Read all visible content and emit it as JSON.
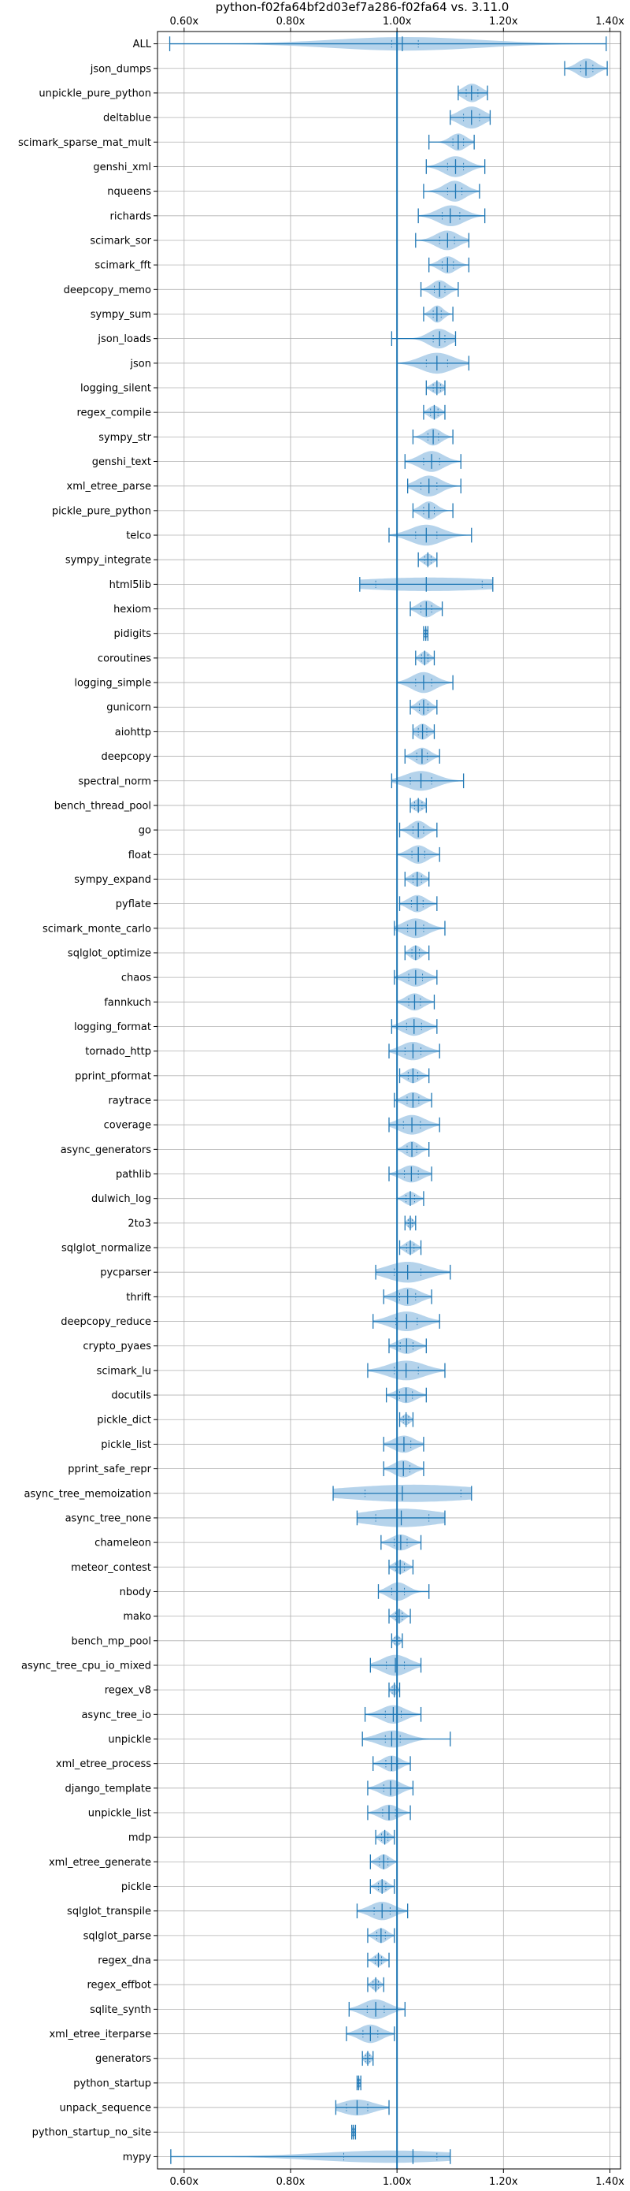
{
  "chart_data": {
    "type": "violin",
    "title": "python-f02fa64bf2d03ef7a286-f02fa64 vs. 3.11.0",
    "xlabel": "",
    "ylabel": "",
    "xlim": [
      0.55,
      1.42
    ],
    "x_ticks": [
      0.6,
      0.8,
      1.0,
      1.2,
      1.4
    ],
    "x_tick_labels": [
      "0.60x",
      "0.80x",
      "1.00x",
      "1.20x",
      "1.40x"
    ],
    "x_axis_position": "top-and-bottom",
    "reference_line": 1.0,
    "grid": true,
    "colors": {
      "violin_fill": "#a8cbe8",
      "stat_lines": "#1f77b4",
      "grid": "#b0b0b0"
    },
    "series": [
      {
        "name": "ALL",
        "min": 0.573,
        "max": 1.393,
        "median": 1.01,
        "mean": 1.02,
        "q1": 0.99,
        "q3": 1.04,
        "spread": 0.55
      },
      {
        "name": "json_dumps",
        "min": 1.315,
        "max": 1.395,
        "median": 1.355,
        "mean": 1.355,
        "q1": 1.345,
        "q3": 1.368,
        "spread": 0.8
      },
      {
        "name": "unpickle_pure_python",
        "min": 1.115,
        "max": 1.17,
        "median": 1.14,
        "mean": 1.142,
        "q1": 1.13,
        "q3": 1.152,
        "spread": 0.75
      },
      {
        "name": "deltablue",
        "min": 1.1,
        "max": 1.175,
        "median": 1.14,
        "mean": 1.138,
        "q1": 1.125,
        "q3": 1.155,
        "spread": 0.9
      },
      {
        "name": "scimark_sparse_mat_mult",
        "min": 1.06,
        "max": 1.145,
        "median": 1.115,
        "mean": 1.115,
        "q1": 1.105,
        "q3": 1.125,
        "spread": 0.7
      },
      {
        "name": "genshi_xml",
        "min": 1.055,
        "max": 1.165,
        "median": 1.11,
        "mean": 1.11,
        "q1": 1.095,
        "q3": 1.125,
        "spread": 0.85
      },
      {
        "name": "nqueens",
        "min": 1.05,
        "max": 1.155,
        "median": 1.11,
        "mean": 1.108,
        "q1": 1.095,
        "q3": 1.122,
        "spread": 0.85
      },
      {
        "name": "richards",
        "min": 1.04,
        "max": 1.165,
        "median": 1.1,
        "mean": 1.1,
        "q1": 1.085,
        "q3": 1.118,
        "spread": 0.85
      },
      {
        "name": "scimark_sor",
        "min": 1.035,
        "max": 1.135,
        "median": 1.095,
        "mean": 1.093,
        "q1": 1.08,
        "q3": 1.108,
        "spread": 0.8
      },
      {
        "name": "scimark_fft",
        "min": 1.06,
        "max": 1.135,
        "median": 1.095,
        "mean": 1.095,
        "q1": 1.085,
        "q3": 1.106,
        "spread": 0.7
      },
      {
        "name": "deepcopy_memo",
        "min": 1.045,
        "max": 1.115,
        "median": 1.08,
        "mean": 1.08,
        "q1": 1.07,
        "q3": 1.09,
        "spread": 0.75
      },
      {
        "name": "sympy_sum",
        "min": 1.05,
        "max": 1.105,
        "median": 1.075,
        "mean": 1.075,
        "q1": 1.068,
        "q3": 1.083,
        "spread": 0.7
      },
      {
        "name": "json_loads",
        "min": 0.99,
        "max": 1.11,
        "median": 1.08,
        "mean": 1.075,
        "q1": 1.068,
        "q3": 1.09,
        "spread": 0.8
      },
      {
        "name": "json",
        "min": 1.0,
        "max": 1.135,
        "median": 1.075,
        "mean": 1.075,
        "q1": 1.055,
        "q3": 1.095,
        "spread": 0.85
      },
      {
        "name": "logging_silent",
        "min": 1.055,
        "max": 1.09,
        "median": 1.075,
        "mean": 1.075,
        "q1": 1.068,
        "q3": 1.082,
        "spread": 0.5
      },
      {
        "name": "regex_compile",
        "min": 1.05,
        "max": 1.09,
        "median": 1.07,
        "mean": 1.07,
        "q1": 1.063,
        "q3": 1.077,
        "spread": 0.55
      },
      {
        "name": "sympy_str",
        "min": 1.03,
        "max": 1.105,
        "median": 1.068,
        "mean": 1.068,
        "q1": 1.058,
        "q3": 1.078,
        "spread": 0.7
      },
      {
        "name": "genshi_text",
        "min": 1.015,
        "max": 1.12,
        "median": 1.065,
        "mean": 1.065,
        "q1": 1.05,
        "q3": 1.08,
        "spread": 0.85
      },
      {
        "name": "xml_etree_parse",
        "min": 1.02,
        "max": 1.12,
        "median": 1.06,
        "mean": 1.062,
        "q1": 1.045,
        "q3": 1.075,
        "spread": 0.85
      },
      {
        "name": "pickle_pure_python",
        "min": 1.03,
        "max": 1.105,
        "median": 1.06,
        "mean": 1.06,
        "q1": 1.05,
        "q3": 1.07,
        "spread": 0.75
      },
      {
        "name": "telco",
        "min": 0.985,
        "max": 1.14,
        "median": 1.055,
        "mean": 1.055,
        "q1": 1.035,
        "q3": 1.075,
        "spread": 0.85
      },
      {
        "name": "sympy_integrate",
        "min": 1.04,
        "max": 1.075,
        "median": 1.058,
        "mean": 1.058,
        "q1": 1.052,
        "q3": 1.064,
        "spread": 0.5
      },
      {
        "name": "html5lib",
        "min": 0.93,
        "max": 1.18,
        "median": 1.055,
        "mean": 1.055,
        "q1": 0.96,
        "q3": 1.16,
        "spread": 0.55
      },
      {
        "name": "hexiom",
        "min": 1.025,
        "max": 1.085,
        "median": 1.055,
        "mean": 1.055,
        "q1": 1.045,
        "q3": 1.065,
        "spread": 0.7
      },
      {
        "name": "pidigits",
        "min": 1.05,
        "max": 1.058,
        "median": 1.054,
        "mean": 1.054,
        "q1": 1.052,
        "q3": 1.056,
        "spread": 0.45
      },
      {
        "name": "coroutines",
        "min": 1.035,
        "max": 1.07,
        "median": 1.052,
        "mean": 1.052,
        "q1": 1.046,
        "q3": 1.058,
        "spread": 0.55
      },
      {
        "name": "logging_simple",
        "min": 1.0,
        "max": 1.105,
        "median": 1.05,
        "mean": 1.05,
        "q1": 1.035,
        "q3": 1.065,
        "spread": 0.85
      },
      {
        "name": "gunicorn",
        "min": 1.025,
        "max": 1.075,
        "median": 1.05,
        "mean": 1.05,
        "q1": 1.042,
        "q3": 1.058,
        "spread": 0.7
      },
      {
        "name": "aiohttp",
        "min": 1.03,
        "max": 1.07,
        "median": 1.048,
        "mean": 1.048,
        "q1": 1.04,
        "q3": 1.056,
        "spread": 0.65
      },
      {
        "name": "deepcopy",
        "min": 1.015,
        "max": 1.08,
        "median": 1.047,
        "mean": 1.047,
        "q1": 1.037,
        "q3": 1.057,
        "spread": 0.7
      },
      {
        "name": "spectral_norm",
        "min": 0.99,
        "max": 1.125,
        "median": 1.045,
        "mean": 1.045,
        "q1": 1.025,
        "q3": 1.065,
        "spread": 0.8
      },
      {
        "name": "bench_thread_pool",
        "min": 1.025,
        "max": 1.055,
        "median": 1.04,
        "mean": 1.04,
        "q1": 1.033,
        "q3": 1.047,
        "spread": 0.5
      },
      {
        "name": "go",
        "min": 1.005,
        "max": 1.075,
        "median": 1.04,
        "mean": 1.04,
        "q1": 1.03,
        "q3": 1.05,
        "spread": 0.75
      },
      {
        "name": "float",
        "min": 1.0,
        "max": 1.08,
        "median": 1.04,
        "mean": 1.04,
        "q1": 1.028,
        "q3": 1.052,
        "spread": 0.75
      },
      {
        "name": "sympy_expand",
        "min": 1.015,
        "max": 1.06,
        "median": 1.038,
        "mean": 1.038,
        "q1": 1.03,
        "q3": 1.046,
        "spread": 0.6
      },
      {
        "name": "pyflate",
        "min": 1.005,
        "max": 1.075,
        "median": 1.038,
        "mean": 1.038,
        "q1": 1.027,
        "q3": 1.049,
        "spread": 0.7
      },
      {
        "name": "scimark_monte_carlo",
        "min": 0.995,
        "max": 1.09,
        "median": 1.035,
        "mean": 1.035,
        "q1": 1.02,
        "q3": 1.05,
        "spread": 0.8
      },
      {
        "name": "sqlglot_optimize",
        "min": 1.015,
        "max": 1.06,
        "median": 1.035,
        "mean": 1.035,
        "q1": 1.028,
        "q3": 1.042,
        "spread": 0.6
      },
      {
        "name": "chaos",
        "min": 0.995,
        "max": 1.075,
        "median": 1.035,
        "mean": 1.035,
        "q1": 1.022,
        "q3": 1.048,
        "spread": 0.75
      },
      {
        "name": "fannkuch",
        "min": 1.0,
        "max": 1.07,
        "median": 1.033,
        "mean": 1.033,
        "q1": 1.022,
        "q3": 1.044,
        "spread": 0.7
      },
      {
        "name": "logging_format",
        "min": 0.99,
        "max": 1.075,
        "median": 1.032,
        "mean": 1.032,
        "q1": 1.018,
        "q3": 1.046,
        "spread": 0.75
      },
      {
        "name": "tornado_http",
        "min": 0.985,
        "max": 1.08,
        "median": 1.03,
        "mean": 1.03,
        "q1": 1.015,
        "q3": 1.045,
        "spread": 0.75
      },
      {
        "name": "pprint_pformat",
        "min": 1.005,
        "max": 1.06,
        "median": 1.03,
        "mean": 1.03,
        "q1": 1.021,
        "q3": 1.039,
        "spread": 0.6
      },
      {
        "name": "raytrace",
        "min": 0.995,
        "max": 1.065,
        "median": 1.03,
        "mean": 1.03,
        "q1": 1.019,
        "q3": 1.041,
        "spread": 0.65
      },
      {
        "name": "coverage",
        "min": 0.985,
        "max": 1.08,
        "median": 1.028,
        "mean": 1.028,
        "q1": 1.012,
        "q3": 1.044,
        "spread": 0.8
      },
      {
        "name": "async_generators",
        "min": 1.0,
        "max": 1.06,
        "median": 1.028,
        "mean": 1.028,
        "q1": 1.019,
        "q3": 1.037,
        "spread": 0.65
      },
      {
        "name": "pathlib",
        "min": 0.985,
        "max": 1.065,
        "median": 1.027,
        "mean": 1.027,
        "q1": 1.014,
        "q3": 1.04,
        "spread": 0.7
      },
      {
        "name": "dulwich_log",
        "min": 1.0,
        "max": 1.05,
        "median": 1.025,
        "mean": 1.025,
        "q1": 1.017,
        "q3": 1.033,
        "spread": 0.55
      },
      {
        "name": "2to3",
        "min": 1.015,
        "max": 1.035,
        "median": 1.025,
        "mean": 1.025,
        "q1": 1.021,
        "q3": 1.029,
        "spread": 0.45
      },
      {
        "name": "sqlglot_normalize",
        "min": 1.005,
        "max": 1.045,
        "median": 1.025,
        "mean": 1.025,
        "q1": 1.018,
        "q3": 1.032,
        "spread": 0.55
      },
      {
        "name": "pycparser",
        "min": 0.96,
        "max": 1.1,
        "median": 1.02,
        "mean": 1.02,
        "q1": 0.995,
        "q3": 1.045,
        "spread": 0.85
      },
      {
        "name": "thrift",
        "min": 0.975,
        "max": 1.065,
        "median": 1.02,
        "mean": 1.02,
        "q1": 1.005,
        "q3": 1.035,
        "spread": 0.75
      },
      {
        "name": "deepcopy_reduce",
        "min": 0.955,
        "max": 1.08,
        "median": 1.018,
        "mean": 1.018,
        "q1": 0.998,
        "q3": 1.038,
        "spread": 0.8
      },
      {
        "name": "crypto_pyaes",
        "min": 0.985,
        "max": 1.055,
        "median": 1.018,
        "mean": 1.018,
        "q1": 1.006,
        "q3": 1.03,
        "spread": 0.65
      },
      {
        "name": "scimark_lu",
        "min": 0.945,
        "max": 1.09,
        "median": 1.017,
        "mean": 1.017,
        "q1": 0.995,
        "q3": 1.04,
        "spread": 0.8
      },
      {
        "name": "docutils",
        "min": 0.98,
        "max": 1.055,
        "median": 1.017,
        "mean": 1.017,
        "q1": 1.005,
        "q3": 1.029,
        "spread": 0.65
      },
      {
        "name": "pickle_dict",
        "min": 1.005,
        "max": 1.03,
        "median": 1.017,
        "mean": 1.017,
        "q1": 1.012,
        "q3": 1.022,
        "spread": 0.45
      },
      {
        "name": "pickle_list",
        "min": 0.975,
        "max": 1.05,
        "median": 1.013,
        "mean": 1.013,
        "q1": 1.0,
        "q3": 1.026,
        "spread": 0.7
      },
      {
        "name": "pprint_safe_repr",
        "min": 0.975,
        "max": 1.05,
        "median": 1.012,
        "mean": 1.012,
        "q1": 1.0,
        "q3": 1.024,
        "spread": 0.7
      },
      {
        "name": "async_tree_memoization",
        "min": 0.88,
        "max": 1.14,
        "median": 1.01,
        "mean": 1.01,
        "q1": 0.94,
        "q3": 1.12,
        "spread": 0.7
      },
      {
        "name": "async_tree_none",
        "min": 0.925,
        "max": 1.09,
        "median": 1.008,
        "mean": 1.008,
        "q1": 0.96,
        "q3": 1.06,
        "spread": 0.75
      },
      {
        "name": "chameleon",
        "min": 0.97,
        "max": 1.045,
        "median": 1.007,
        "mean": 1.007,
        "q1": 0.995,
        "q3": 1.019,
        "spread": 0.65
      },
      {
        "name": "meteor_contest",
        "min": 0.985,
        "max": 1.03,
        "median": 1.006,
        "mean": 1.006,
        "q1": 0.998,
        "q3": 1.014,
        "spread": 0.55
      },
      {
        "name": "nbody",
        "min": 0.965,
        "max": 1.06,
        "median": 1.0,
        "mean": 1.002,
        "q1": 0.99,
        "q3": 1.014,
        "spread": 0.75
      },
      {
        "name": "mako",
        "min": 0.985,
        "max": 1.025,
        "median": 1.004,
        "mean": 1.004,
        "q1": 0.998,
        "q3": 1.01,
        "spread": 0.55
      },
      {
        "name": "bench_mp_pool",
        "min": 0.99,
        "max": 1.01,
        "median": 1.0,
        "mean": 1.0,
        "q1": 0.996,
        "q3": 1.004,
        "spread": 0.45
      },
      {
        "name": "async_tree_cpu_io_mixed",
        "min": 0.95,
        "max": 1.045,
        "median": 0.997,
        "mean": 0.997,
        "q1": 0.98,
        "q3": 1.014,
        "spread": 0.85
      },
      {
        "name": "regex_v8",
        "min": 0.985,
        "max": 1.005,
        "median": 0.995,
        "mean": 0.995,
        "q1": 0.991,
        "q3": 0.999,
        "spread": 0.45
      },
      {
        "name": "async_tree_io",
        "min": 0.94,
        "max": 1.045,
        "median": 0.993,
        "mean": 0.993,
        "q1": 0.978,
        "q3": 1.008,
        "spread": 0.75
      },
      {
        "name": "unpickle",
        "min": 0.935,
        "max": 1.1,
        "median": 0.99,
        "mean": 0.992,
        "q1": 0.978,
        "q3": 1.006,
        "spread": 0.7
      },
      {
        "name": "xml_etree_process",
        "min": 0.955,
        "max": 1.025,
        "median": 0.99,
        "mean": 0.99,
        "q1": 0.979,
        "q3": 1.001,
        "spread": 0.65
      },
      {
        "name": "django_template",
        "min": 0.945,
        "max": 1.03,
        "median": 0.988,
        "mean": 0.988,
        "q1": 0.975,
        "q3": 1.001,
        "spread": 0.7
      },
      {
        "name": "unpickle_list",
        "min": 0.945,
        "max": 1.025,
        "median": 0.985,
        "mean": 0.985,
        "q1": 0.973,
        "q3": 0.997,
        "spread": 0.65
      },
      {
        "name": "mdp",
        "min": 0.96,
        "max": 0.995,
        "median": 0.977,
        "mean": 0.977,
        "q1": 0.971,
        "q3": 0.983,
        "spread": 0.55
      },
      {
        "name": "xml_etree_generate",
        "min": 0.95,
        "max": 1.0,
        "median": 0.975,
        "mean": 0.975,
        "q1": 0.967,
        "q3": 0.983,
        "spread": 0.6
      },
      {
        "name": "pickle",
        "min": 0.95,
        "max": 0.995,
        "median": 0.972,
        "mean": 0.972,
        "q1": 0.965,
        "q3": 0.979,
        "spread": 0.55
      },
      {
        "name": "sqlglot_transpile",
        "min": 0.925,
        "max": 1.02,
        "median": 0.972,
        "mean": 0.972,
        "q1": 0.957,
        "q3": 0.987,
        "spread": 0.75
      },
      {
        "name": "sqlglot_parse",
        "min": 0.945,
        "max": 0.995,
        "median": 0.97,
        "mean": 0.97,
        "q1": 0.962,
        "q3": 0.978,
        "spread": 0.6
      },
      {
        "name": "regex_dna",
        "min": 0.945,
        "max": 0.985,
        "median": 0.965,
        "mean": 0.965,
        "q1": 0.959,
        "q3": 0.971,
        "spread": 0.5
      },
      {
        "name": "regex_effbot",
        "min": 0.945,
        "max": 0.975,
        "median": 0.96,
        "mean": 0.96,
        "q1": 0.955,
        "q3": 0.965,
        "spread": 0.5
      },
      {
        "name": "sqlite_synth",
        "min": 0.91,
        "max": 1.015,
        "median": 0.96,
        "mean": 0.96,
        "q1": 0.944,
        "q3": 0.976,
        "spread": 0.8
      },
      {
        "name": "xml_etree_iterparse",
        "min": 0.905,
        "max": 0.995,
        "median": 0.95,
        "mean": 0.95,
        "q1": 0.936,
        "q3": 0.964,
        "spread": 0.75
      },
      {
        "name": "generators",
        "min": 0.935,
        "max": 0.955,
        "median": 0.945,
        "mean": 0.945,
        "q1": 0.941,
        "q3": 0.949,
        "spread": 0.5
      },
      {
        "name": "python_startup",
        "min": 0.925,
        "max": 0.932,
        "median": 0.928,
        "mean": 0.928,
        "q1": 0.926,
        "q3": 0.93,
        "spread": 0.45
      },
      {
        "name": "unpack_sequence",
        "min": 0.885,
        "max": 0.985,
        "median": 0.925,
        "mean": 0.925,
        "q1": 0.905,
        "q3": 0.945,
        "spread": 0.65
      },
      {
        "name": "python_startup_no_site",
        "min": 0.915,
        "max": 0.922,
        "median": 0.918,
        "mean": 0.918,
        "q1": 0.916,
        "q3": 0.92,
        "spread": 0.45
      },
      {
        "name": "mypy",
        "min": 0.575,
        "max": 1.1,
        "median": 1.03,
        "mean": 1.03,
        "q1": 0.9,
        "q3": 1.075,
        "spread": 0.5
      }
    ]
  }
}
